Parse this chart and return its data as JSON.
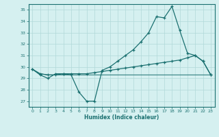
{
  "xlabel": "Humidex (Indice chaleur)",
  "xlim": [
    -0.5,
    23.5
  ],
  "ylim": [
    26.5,
    35.5
  ],
  "yticks": [
    27,
    28,
    29,
    30,
    31,
    32,
    33,
    34,
    35
  ],
  "xticks": [
    0,
    1,
    2,
    3,
    4,
    5,
    6,
    7,
    8,
    9,
    10,
    11,
    12,
    13,
    14,
    15,
    16,
    17,
    18,
    19,
    20,
    21,
    22,
    23
  ],
  "background_color": "#d5f0f0",
  "grid_color": "#b0d8d8",
  "line_color": "#1a7070",
  "y_main": [
    29.8,
    29.3,
    29.0,
    29.4,
    29.4,
    29.3,
    27.8,
    27.0,
    27.0,
    29.7,
    30.0,
    30.5,
    31.0,
    31.5,
    32.2,
    33.0,
    34.4,
    34.3,
    35.3,
    33.2,
    31.2,
    31.0,
    30.5,
    29.3
  ],
  "y_rise": [
    29.8,
    29.4,
    29.3,
    29.3,
    29.4,
    29.4,
    29.4,
    29.4,
    29.5,
    29.6,
    29.7,
    29.8,
    29.9,
    30.0,
    30.1,
    30.2,
    30.3,
    30.4,
    30.5,
    30.6,
    30.8,
    31.0,
    30.5,
    29.3
  ],
  "y_flat": [
    29.8,
    29.4,
    29.3,
    29.3,
    29.3,
    29.3,
    29.3,
    29.3,
    29.3,
    29.3,
    29.3,
    29.3,
    29.3,
    29.3,
    29.3,
    29.3,
    29.3,
    29.3,
    29.3,
    29.3,
    29.3,
    29.3,
    29.3,
    29.3
  ]
}
